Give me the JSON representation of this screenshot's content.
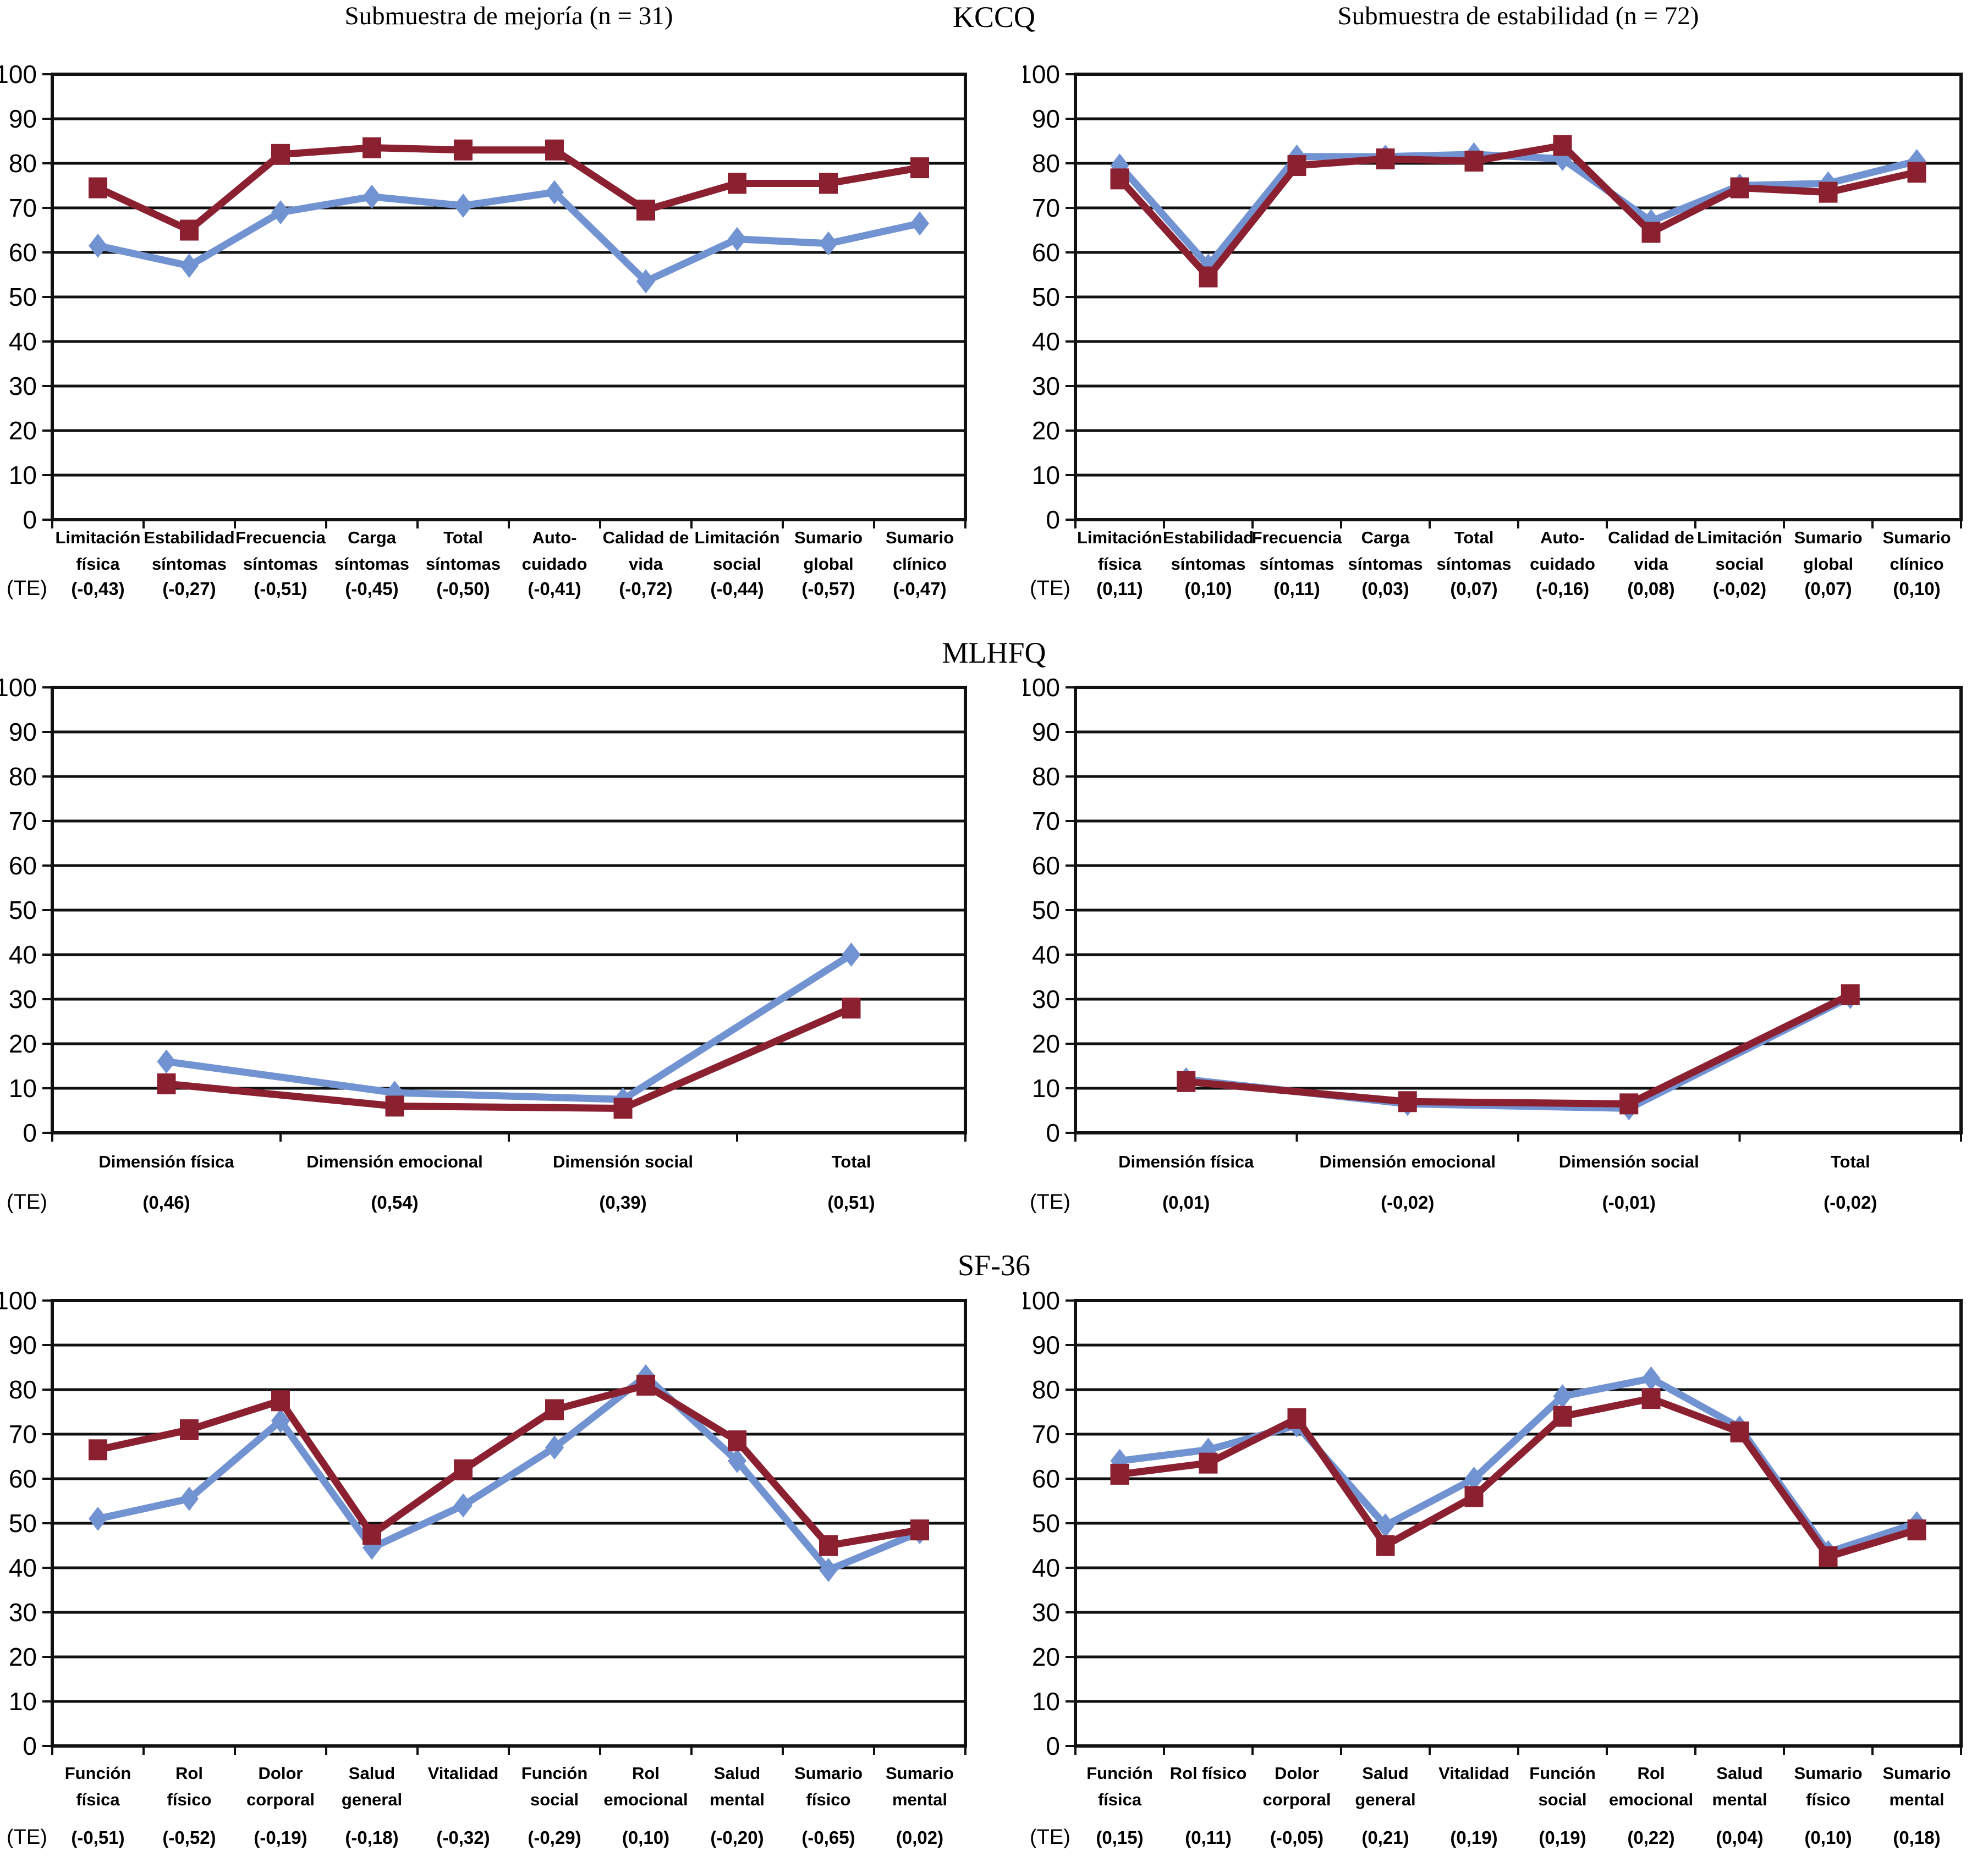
{
  "titles": {
    "kccq": "KCCQ",
    "mlhfq": "MLHFQ",
    "sf36": "SF-36"
  },
  "subtitles": {
    "improvement": "Submuestra de mejoría (n = 31)",
    "stability": "Submuestra de estabilidad (n = 72)"
  },
  "te_label": "(TE)",
  "colors": {
    "series_blue": "#7293D1",
    "series_red": "#8B2031",
    "axis": "#111111",
    "text": "#000000"
  },
  "axis": {
    "min": 0,
    "max": 100,
    "step": 10
  },
  "chart_data": [
    {
      "id": "kccq-improvement",
      "type": "line",
      "panel": "KCCQ",
      "subtitle": "Submuestra de mejoría (n = 31)",
      "ylim": [
        0,
        100
      ],
      "grid": true,
      "legend": "none",
      "categories": [
        [
          "Limitación",
          "física"
        ],
        [
          "Estabilidad",
          "síntomas"
        ],
        [
          "Frecuencia",
          "síntomas"
        ],
        [
          "Carga",
          "síntomas"
        ],
        [
          "Total",
          "síntomas"
        ],
        [
          "Auto-",
          "cuidado"
        ],
        [
          "Calidad de",
          "vida"
        ],
        [
          "Limitación",
          "social"
        ],
        [
          "Sumario",
          "global"
        ],
        [
          "Sumario",
          "clínico"
        ]
      ],
      "series": [
        {
          "id": "blue-diamond-series",
          "marker": "diamond",
          "color": "#7293D1",
          "values": [
            61.5,
            57,
            69,
            72.5,
            70.5,
            73.5,
            53.5,
            63,
            62,
            66.5
          ]
        },
        {
          "id": "red-square-series",
          "marker": "square",
          "color": "#8B2031",
          "values": [
            74.5,
            65,
            82,
            83.5,
            83,
            83,
            69.5,
            75.5,
            75.5,
            79
          ]
        }
      ],
      "te": [
        "(-0,43)",
        "(-0,27)",
        "(-0,51)",
        "(-0,45)",
        "(-0,50)",
        "(-0,41)",
        "(-0,72)",
        "(-0,44)",
        "(-0,57)",
        "(-0,47)"
      ]
    },
    {
      "id": "kccq-stability",
      "type": "line",
      "panel": "KCCQ",
      "subtitle": "Submuestra de estabilidad (n = 72)",
      "ylim": [
        0,
        100
      ],
      "grid": true,
      "legend": "none",
      "categories": [
        [
          "Limitación",
          "física"
        ],
        [
          "Estabilidad",
          "síntomas"
        ],
        [
          "Frecuencia",
          "síntomas"
        ],
        [
          "Carga",
          "síntomas"
        ],
        [
          "Total",
          "síntomas"
        ],
        [
          "Auto-",
          "cuidado"
        ],
        [
          "Calidad de",
          "vida"
        ],
        [
          "Limitación",
          "social"
        ],
        [
          "Sumario",
          "global"
        ],
        [
          "Sumario",
          "clínico"
        ]
      ],
      "series": [
        {
          "id": "blue-diamond-series",
          "marker": "diamond",
          "color": "#7293D1",
          "values": [
            79.5,
            57,
            81.5,
            81.5,
            82,
            81,
            67,
            75,
            75.5,
            80.5
          ]
        },
        {
          "id": "red-square-series",
          "marker": "square",
          "color": "#8B2031",
          "values": [
            76.5,
            54.5,
            79.5,
            81,
            80.5,
            84,
            64.5,
            74.5,
            73.5,
            78
          ]
        }
      ],
      "te": [
        "(0,11)",
        "(0,10)",
        "(0,11)",
        "(0,03)",
        "(0,07)",
        "(-0,16)",
        "(0,08)",
        "(-0,02)",
        "(0,07)",
        "(0,10)"
      ]
    },
    {
      "id": "mlhfq-improvement",
      "type": "line",
      "panel": "MLHFQ",
      "subtitle": "Submuestra de mejoría (n = 31)",
      "ylim": [
        0,
        100
      ],
      "grid": true,
      "legend": "none",
      "categories": [
        [
          "Dimensión física"
        ],
        [
          "Dimensión emocional"
        ],
        [
          "Dimensión social"
        ],
        [
          "Total"
        ]
      ],
      "series": [
        {
          "id": "blue-diamond-series",
          "marker": "diamond",
          "color": "#7293D1",
          "values": [
            16,
            9,
            7.5,
            40
          ]
        },
        {
          "id": "red-square-series",
          "marker": "square",
          "color": "#8B2031",
          "values": [
            11,
            6,
            5.5,
            28
          ]
        }
      ],
      "te": [
        "(0,46)",
        "(0,54)",
        "(0,39)",
        "(0,51)"
      ]
    },
    {
      "id": "mlhfq-stability",
      "type": "line",
      "panel": "MLHFQ",
      "subtitle": "Submuestra de estabilidad (n = 72)",
      "ylim": [
        0,
        100
      ],
      "grid": true,
      "legend": "none",
      "categories": [
        [
          "Dimensión física"
        ],
        [
          "Dimensión emocional"
        ],
        [
          "Dimensión social"
        ],
        [
          "Total"
        ]
      ],
      "series": [
        {
          "id": "blue-diamond-series",
          "marker": "diamond",
          "color": "#7293D1",
          "values": [
            12,
            6.5,
            5.5,
            30.5
          ]
        },
        {
          "id": "red-square-series",
          "marker": "square",
          "color": "#8B2031",
          "values": [
            11.5,
            7,
            6.5,
            31
          ]
        }
      ],
      "te": [
        "(0,01)",
        "(-0,02)",
        "(-0,01)",
        "(-0,02)"
      ]
    },
    {
      "id": "sf36-improvement",
      "type": "line",
      "panel": "SF-36",
      "subtitle": "Submuestra de mejoría (n = 31)",
      "ylim": [
        0,
        100
      ],
      "grid": true,
      "legend": "none",
      "categories": [
        [
          "Función",
          "física"
        ],
        [
          "Rol",
          "físico"
        ],
        [
          "Dolor",
          "corporal"
        ],
        [
          "Salud",
          "general"
        ],
        [
          "Vitalidad"
        ],
        [
          "Función",
          "social"
        ],
        [
          "Rol",
          "emocional"
        ],
        [
          "Salud",
          "mental"
        ],
        [
          "Sumario",
          "físico"
        ],
        [
          "Sumario",
          "mental"
        ]
      ],
      "series": [
        {
          "id": "blue-diamond-series",
          "marker": "diamond",
          "color": "#7293D1",
          "values": [
            51,
            55.5,
            73,
            44.5,
            54,
            67,
            83,
            64,
            39.5,
            48
          ]
        },
        {
          "id": "red-square-series",
          "marker": "square",
          "color": "#8B2031",
          "values": [
            66.5,
            71,
            77.5,
            47.5,
            62,
            75.5,
            81,
            68.5,
            45,
            48.5
          ]
        }
      ],
      "te": [
        "(-0,51)",
        "(-0,52)",
        "(-0,19)",
        "(-0,18)",
        "(-0,32)",
        "(-0,29)",
        "(0,10)",
        "(-0,20)",
        "(-0,65)",
        "(0,02)"
      ]
    },
    {
      "id": "sf36-stability",
      "type": "line",
      "panel": "SF-36",
      "subtitle": "Submuestra de estabilidad (n = 72)",
      "ylim": [
        0,
        100
      ],
      "grid": true,
      "legend": "none",
      "categories": [
        [
          "Función",
          "física"
        ],
        [
          "Rol físico"
        ],
        [
          "Dolor",
          "corporal"
        ],
        [
          "Salud",
          "general"
        ],
        [
          "Vitalidad"
        ],
        [
          "Función",
          "social"
        ],
        [
          "Rol",
          "emocional"
        ],
        [
          "Salud",
          "mental"
        ],
        [
          "Sumario",
          "físico"
        ],
        [
          "Sumario",
          "mental"
        ]
      ],
      "series": [
        {
          "id": "blue-diamond-series",
          "marker": "diamond",
          "color": "#7293D1",
          "values": [
            64,
            66.5,
            72,
            49.5,
            60,
            78.5,
            82.5,
            71.5,
            43.5,
            50
          ]
        },
        {
          "id": "red-square-series",
          "marker": "square",
          "color": "#8B2031",
          "values": [
            61,
            63.5,
            73.5,
            45,
            56,
            74,
            78,
            70.5,
            42.5,
            48.5
          ]
        }
      ],
      "te": [
        "(0,15)",
        "(0,11)",
        "(-0,05)",
        "(0,21)",
        "(0,19)",
        "(0,19)",
        "(0,22)",
        "(0,04)",
        "(0,10)",
        "(0,18)"
      ]
    }
  ]
}
